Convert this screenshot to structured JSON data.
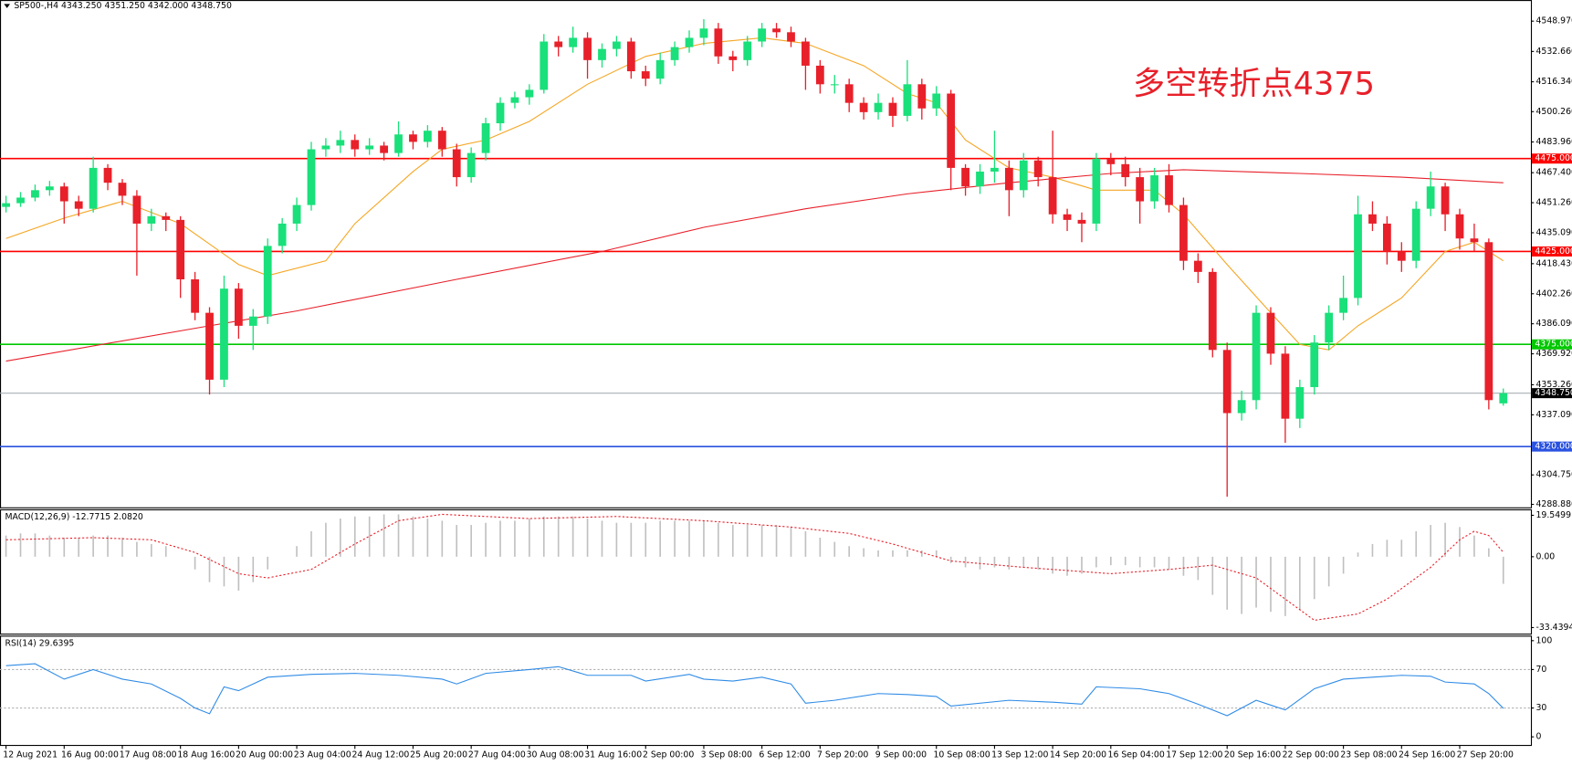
{
  "chart_data": [
    {
      "type": "candlestick",
      "title": "SP500-,H4  4343.250 4351.250 4342.000 4348.750",
      "annotation": "多空转折点4375",
      "up_color": "#19e07a",
      "down_color": "#e8202a",
      "ylim": [
        4287.3,
        4559.8
      ],
      "yticks": [
        {
          "value": 4548.97,
          "label": "4548.970"
        },
        {
          "value": 4532.66,
          "label": "4532.660"
        },
        {
          "value": 4516.34,
          "label": "4516.340"
        },
        {
          "value": 4500.26,
          "label": "4500.260"
        },
        {
          "value": 4483.96,
          "label": "4483.960"
        },
        {
          "value": 4467.4,
          "label": "4467.400"
        },
        {
          "value": 4451.26,
          "label": "4451.260"
        },
        {
          "value": 4435.09,
          "label": "4435.090"
        },
        {
          "value": 4418.43,
          "label": "4418.430"
        },
        {
          "value": 4402.26,
          "label": "4402.260"
        },
        {
          "value": 4386.09,
          "label": "4386.090"
        },
        {
          "value": 4369.92,
          "label": "4369.920"
        },
        {
          "value": 4353.26,
          "label": "4353.260"
        },
        {
          "value": 4337.09,
          "label": "4337.090"
        },
        {
          "value": 4304.75,
          "label": "4304.750"
        },
        {
          "value": 4288.88,
          "label": "4288.880"
        }
      ],
      "levels": [
        {
          "value": 4475,
          "label": "4475.000",
          "color": "#ff0000"
        },
        {
          "value": 4425,
          "label": "4425.000",
          "color": "#ff0000"
        },
        {
          "value": 4375,
          "label": "4375.000",
          "color": "#00c800"
        },
        {
          "value": 4348.75,
          "label": "4348.750",
          "color": "#a9b0b4",
          "label_color": "#000000"
        },
        {
          "value": 4320,
          "label": "4320.000",
          "color": "#2a52e0"
        }
      ],
      "categories": [
        "12 Aug 2021",
        null,
        null,
        null,
        "16 Aug 00:00",
        null,
        null,
        null,
        "17 Aug 08:00",
        null,
        null,
        null,
        "18 Aug 16:00",
        null,
        null,
        null,
        "20 Aug 00:00",
        null,
        null,
        null,
        "23 Aug 04:00",
        null,
        null,
        null,
        "24 Aug 12:00",
        null,
        null,
        null,
        "25 Aug 20:00",
        null,
        null,
        null,
        "27 Aug 04:00",
        null,
        null,
        null,
        "30 Aug 08:00",
        null,
        null,
        null,
        "31 Aug 16:00",
        null,
        null,
        null,
        "2 Sep 00:00",
        null,
        null,
        null,
        "3 Sep 08:00",
        null,
        null,
        null,
        "6 Sep 12:00",
        null,
        null,
        null,
        "7 Sep 20:00",
        null,
        null,
        null,
        "9 Sep 00:00",
        null,
        null,
        null,
        "10 Sep 08:00",
        null,
        null,
        null,
        "13 Sep 12:00",
        null,
        null,
        null,
        "14 Sep 20:00",
        null,
        null,
        null,
        "16 Sep 04:00",
        null,
        null,
        null,
        "17 Sep 12:00",
        null,
        null,
        null,
        "20 Sep 16:00",
        null,
        null,
        null,
        "22 Sep 00:00",
        null,
        null,
        null,
        "23 Sep 08:00",
        null,
        null,
        null,
        "24 Sep 16:00",
        null,
        null,
        null,
        "27 Sep 20:00",
        null,
        null,
        null
      ],
      "candles": [
        [
          4449,
          4455,
          4446,
          4451
        ],
        [
          4451,
          4457,
          4449,
          4454
        ],
        [
          4454,
          4461,
          4452,
          4458
        ],
        [
          4458,
          4463,
          4455,
          4460
        ],
        [
          4460,
          4462,
          4440,
          4452
        ],
        [
          4452,
          4455,
          4444,
          4448
        ],
        [
          4448,
          4476,
          4446,
          4470
        ],
        [
          4470,
          4472,
          4458,
          4462
        ],
        [
          4462,
          4464,
          4450,
          4455
        ],
        [
          4455,
          4458,
          4412,
          4440
        ],
        [
          4440,
          4448,
          4436,
          4444
        ],
        [
          4444,
          4446,
          4436,
          4442
        ],
        [
          4442,
          4444,
          4400,
          4410
        ],
        [
          4410,
          4414,
          4388,
          4392
        ],
        [
          4392,
          4395,
          4348,
          4356
        ],
        [
          4356,
          4412,
          4352,
          4405
        ],
        [
          4405,
          4408,
          4378,
          4385
        ],
        [
          4385,
          4394,
          4372,
          4390
        ],
        [
          4390,
          4432,
          4386,
          4428
        ],
        [
          4428,
          4443,
          4424,
          4440
        ],
        [
          4440,
          4454,
          4436,
          4450
        ],
        [
          4450,
          4484,
          4447,
          4480
        ],
        [
          4480,
          4486,
          4476,
          4482
        ],
        [
          4482,
          4490,
          4478,
          4485
        ],
        [
          4485,
          4488,
          4476,
          4480
        ],
        [
          4480,
          4486,
          4477,
          4482
        ],
        [
          4482,
          4484,
          4474,
          4478
        ],
        [
          4478,
          4495,
          4476,
          4488
        ],
        [
          4488,
          4490,
          4480,
          4484
        ],
        [
          4484,
          4493,
          4481,
          4490
        ],
        [
          4490,
          4492,
          4476,
          4480
        ],
        [
          4480,
          4483,
          4460,
          4465
        ],
        [
          4465,
          4481,
          4462,
          4478
        ],
        [
          4478,
          4497,
          4474,
          4494
        ],
        [
          4494,
          4508,
          4490,
          4505
        ],
        [
          4505,
          4511,
          4502,
          4508
        ],
        [
          4508,
          4515,
          4504,
          4512
        ],
        [
          4512,
          4542,
          4510,
          4538
        ],
        [
          4538,
          4541,
          4530,
          4535
        ],
        [
          4535,
          4546,
          4532,
          4540
        ],
        [
          4540,
          4543,
          4518,
          4528
        ],
        [
          4528,
          4537,
          4524,
          4534
        ],
        [
          4534,
          4541,
          4530,
          4538
        ],
        [
          4538,
          4540,
          4518,
          4522
        ],
        [
          4522,
          4525,
          4514,
          4518
        ],
        [
          4518,
          4532,
          4515,
          4528
        ],
        [
          4528,
          4538,
          4525,
          4535
        ],
        [
          4535,
          4544,
          4532,
          4540
        ],
        [
          4540,
          4550,
          4536,
          4545
        ],
        [
          4545,
          4548,
          4526,
          4530
        ],
        [
          4530,
          4533,
          4522,
          4528
        ],
        [
          4528,
          4541,
          4525,
          4538
        ],
        [
          4538,
          4548,
          4535,
          4545
        ],
        [
          4545,
          4548,
          4540,
          4543
        ],
        [
          4543,
          4546,
          4535,
          4538
        ],
        [
          4538,
          4540,
          4512,
          4525
        ],
        [
          4525,
          4528,
          4510,
          4515
        ],
        [
          4515,
          4520,
          4510,
          4515
        ],
        [
          4515,
          4518,
          4500,
          4505
        ],
        [
          4505,
          4508,
          4496,
          4500
        ],
        [
          4500,
          4510,
          4496,
          4505
        ],
        [
          4505,
          4508,
          4492,
          4498
        ],
        [
          4498,
          4528,
          4495,
          4515
        ],
        [
          4515,
          4518,
          4496,
          4502
        ],
        [
          4502,
          4514,
          4498,
          4510
        ],
        [
          4510,
          4512,
          4458,
          4470
        ],
        [
          4470,
          4472,
          4455,
          4460
        ],
        [
          4460,
          4472,
          4456,
          4468
        ],
        [
          4468,
          4490,
          4462,
          4470
        ],
        [
          4470,
          4474,
          4444,
          4458
        ],
        [
          4458,
          4478,
          4454,
          4474
        ],
        [
          4474,
          4476,
          4460,
          4465
        ],
        [
          4465,
          4490,
          4440,
          4445
        ],
        [
          4445,
          4448,
          4436,
          4442
        ],
        [
          4442,
          4446,
          4430,
          4440
        ],
        [
          4440,
          4478,
          4436,
          4475
        ],
        [
          4475,
          4478,
          4466,
          4472
        ],
        [
          4472,
          4476,
          4460,
          4465
        ],
        [
          4465,
          4470,
          4440,
          4452
        ],
        [
          4452,
          4470,
          4448,
          4466
        ],
        [
          4466,
          4472,
          4446,
          4450
        ],
        [
          4450,
          4454,
          4415,
          4420
        ],
        [
          4420,
          4424,
          4408,
          4414
        ],
        [
          4414,
          4416,
          4368,
          4372
        ],
        [
          4372,
          4376,
          4293,
          4338
        ],
        [
          4338,
          4350,
          4334,
          4345
        ],
        [
          4345,
          4396,
          4340,
          4392
        ],
        [
          4392,
          4395,
          4364,
          4370
        ],
        [
          4370,
          4374,
          4322,
          4335
        ],
        [
          4335,
          4356,
          4330,
          4352
        ],
        [
          4352,
          4380,
          4348,
          4376
        ],
        [
          4376,
          4396,
          4372,
          4392
        ],
        [
          4392,
          4412,
          4388,
          4400
        ],
        [
          4400,
          4455,
          4396,
          4445
        ],
        [
          4445,
          4452,
          4436,
          4440
        ],
        [
          4440,
          4444,
          4418,
          4425
        ],
        [
          4425,
          4430,
          4414,
          4420
        ],
        [
          4420,
          4452,
          4416,
          4448
        ],
        [
          4448,
          4468,
          4444,
          4460
        ],
        [
          4460,
          4462,
          4436,
          4445
        ],
        [
          4445,
          4448,
          4426,
          4432
        ],
        [
          4432,
          4440,
          4425,
          4430
        ],
        [
          4430,
          4432,
          4340,
          4345
        ],
        [
          4343.25,
          4351.25,
          4342,
          4348.75
        ]
      ],
      "lines": [
        {
          "color": "#f5a623",
          "x": [
            0,
            4,
            8,
            12,
            16,
            18,
            22,
            24,
            28,
            30,
            33,
            36,
            40,
            44,
            48,
            52,
            55,
            59,
            62,
            64,
            66,
            69,
            72,
            75,
            76,
            79,
            81,
            84,
            87,
            89,
            91,
            93,
            96,
            99,
            101,
            103
          ],
          "values": [
            4432,
            4443,
            4452,
            4440,
            4418,
            4412,
            4420,
            4440,
            4468,
            4480,
            4485,
            4495,
            4515,
            4530,
            4537,
            4540,
            4537,
            4525,
            4510,
            4505,
            4485,
            4470,
            4465,
            4458,
            4458,
            4458,
            4445,
            4418,
            4392,
            4375,
            4372,
            4385,
            4400,
            4425,
            4430,
            4420
          ]
        },
        {
          "color": "#e8202a",
          "x": [
            0,
            14,
            20,
            31,
            41,
            48,
            55,
            62,
            69,
            76,
            81,
            89,
            96,
            103
          ],
          "values": [
            4366,
            4385,
            4393,
            4410,
            4425,
            4438,
            4448,
            4456,
            4462,
            4467,
            4469,
            4467,
            4465,
            4462
          ]
        }
      ]
    },
    {
      "type": "bar",
      "title": "MACD(12,26,9) -12.7715 2.0820",
      "color": "#c0c0c0",
      "ylim": [
        -36.3,
        21.9
      ],
      "yticks": [
        19.5499,
        {
          "value": 0,
          "label": "0.00"
        },
        -33.4394
      ],
      "values": [
        10,
        11,
        11,
        10,
        9,
        9,
        10,
        10,
        9,
        7,
        6,
        5,
        0,
        -6,
        -12,
        -14,
        -16,
        -12,
        -6,
        0,
        5,
        12,
        16,
        18,
        19,
        19,
        20,
        20,
        19,
        18,
        17,
        15,
        15,
        16,
        17,
        17,
        18,
        19,
        19,
        19,
        18,
        17,
        16,
        16,
        16,
        17,
        17,
        17,
        17,
        16,
        15,
        15,
        15,
        15,
        14,
        12,
        9,
        7,
        5,
        4,
        3,
        3,
        3,
        3,
        3,
        -3,
        -5,
        -6,
        -5,
        -6,
        -5,
        -6,
        -8,
        -9,
        -8,
        -5,
        -4,
        -4,
        -5,
        -5,
        -6,
        -9,
        -11,
        -18,
        -25,
        -27,
        -24,
        -26,
        -28,
        -25,
        -20,
        -14,
        -8,
        2,
        6,
        8,
        8,
        12,
        15,
        16,
        14,
        10,
        4,
        -12.7715
      ],
      "signal": {
        "color": "#e8202a",
        "x": [
          0,
          6,
          10,
          13,
          16,
          18,
          21,
          24,
          27,
          30,
          36,
          42,
          48,
          54,
          58,
          61,
          65,
          70,
          76,
          80,
          83,
          86,
          89,
          90,
          93,
          95,
          98,
          100,
          101,
          102,
          103
        ],
        "values": [
          8,
          9,
          8,
          2,
          -8,
          -10,
          -6,
          6,
          17,
          20,
          18,
          19,
          17,
          14,
          11,
          6,
          -2,
          -5,
          -8,
          -6,
          -4,
          -10,
          -25,
          -30,
          -27,
          -20,
          -5,
          8,
          12,
          10,
          2.082
        ]
      }
    },
    {
      "type": "line",
      "title": "RSI(14) 29.6395",
      "ylim": [
        -8.4,
        104.2
      ],
      "yticks": [
        100,
        70,
        30,
        0
      ],
      "levels": [
        70,
        30
      ],
      "series": [
        {
          "color": "#2f8be6",
          "x": [
            0,
            2,
            4,
            6,
            8,
            10,
            12,
            13,
            14,
            15,
            16,
            18,
            21,
            24,
            27,
            30,
            31,
            33,
            36,
            38,
            40,
            43,
            44,
            47,
            48,
            50,
            52,
            54,
            55,
            57,
            60,
            62,
            64,
            65,
            69,
            72,
            74,
            75,
            78,
            80,
            82,
            84,
            86,
            88,
            90,
            92,
            94,
            96,
            98,
            99,
            101,
            102,
            103
          ],
          "values": [
            74,
            76,
            60,
            70,
            60,
            55,
            40,
            30,
            24,
            52,
            48,
            62,
            65,
            66,
            64,
            60,
            55,
            66,
            70,
            73,
            64,
            64,
            58,
            65,
            60,
            58,
            62,
            55,
            35,
            38,
            45,
            44,
            42,
            32,
            38,
            36,
            34,
            52,
            50,
            45,
            34,
            22,
            38,
            28,
            50,
            60,
            62,
            64,
            63,
            57,
            55,
            45,
            29.6395
          ]
        }
      ]
    }
  ]
}
